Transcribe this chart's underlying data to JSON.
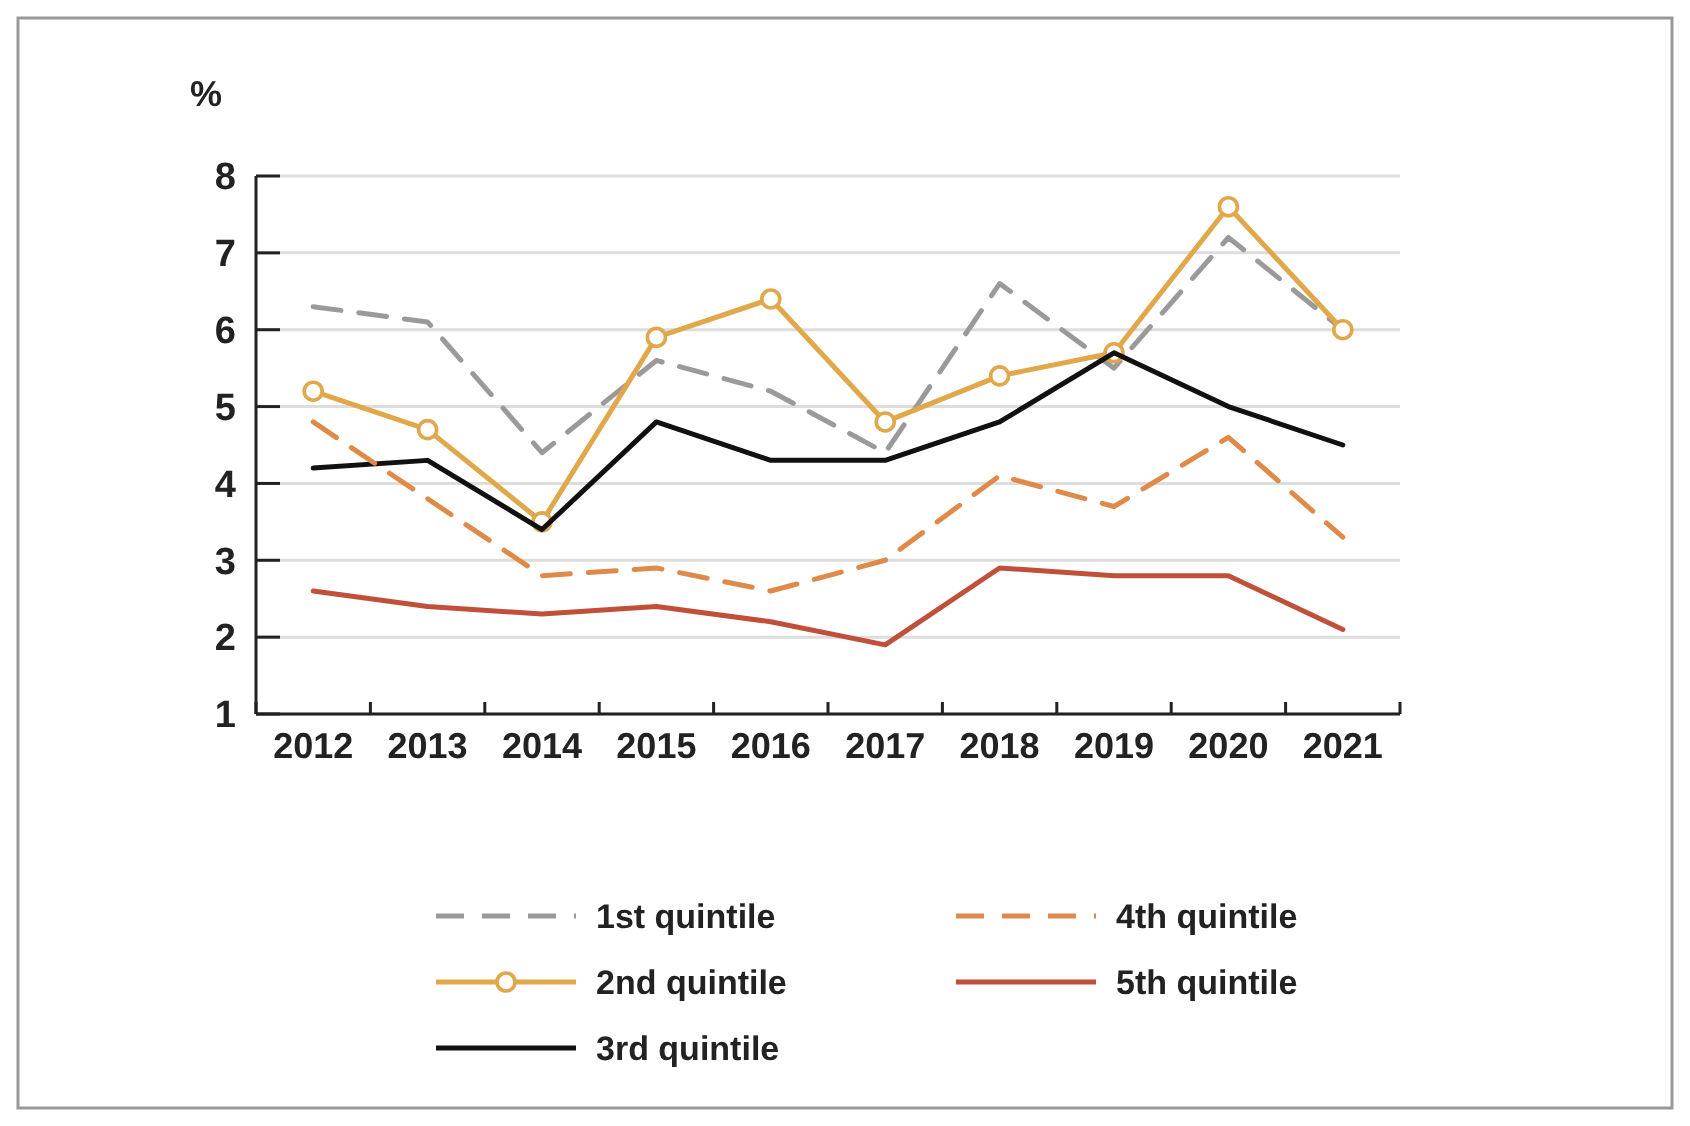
{
  "chart_data": {
    "type": "line",
    "ylabel": "%",
    "categories": [
      "2012",
      "2013",
      "2014",
      "2015",
      "2016",
      "2017",
      "2018",
      "2019",
      "2020",
      "2021"
    ],
    "ylim": [
      1,
      8
    ],
    "yticks": [
      1,
      2,
      3,
      4,
      5,
      6,
      7,
      8
    ],
    "grid": "y",
    "legend": "bottom",
    "series": [
      {
        "name": "1st quintile",
        "color": "#9a9a9a",
        "line_style": "dashed",
        "marker": "none",
        "values": [
          6.3,
          6.1,
          4.4,
          5.6,
          5.2,
          4.4,
          6.6,
          5.5,
          7.2,
          6.0
        ]
      },
      {
        "name": "2nd quintile",
        "color": "#e0a84a",
        "line_style": "solid",
        "marker": "circle",
        "values": [
          5.2,
          4.7,
          3.5,
          5.9,
          6.4,
          4.8,
          5.4,
          5.7,
          7.6,
          6.0
        ]
      },
      {
        "name": "3rd quintile",
        "color": "#111111",
        "line_style": "solid",
        "marker": "none",
        "values": [
          4.2,
          4.3,
          3.4,
          4.8,
          4.3,
          4.3,
          4.8,
          5.7,
          5.0,
          4.5
        ]
      },
      {
        "name": "4th quintile",
        "color": "#e08a4a",
        "line_style": "dashed",
        "marker": "none",
        "values": [
          4.8,
          3.8,
          2.8,
          2.9,
          2.6,
          3.0,
          4.1,
          3.7,
          4.6,
          3.3
        ]
      },
      {
        "name": "5th quintile",
        "color": "#c0503a",
        "line_style": "solid",
        "marker": "none",
        "values": [
          2.6,
          2.4,
          2.3,
          2.4,
          2.2,
          1.9,
          2.9,
          2.8,
          2.8,
          2.1
        ]
      }
    ]
  }
}
